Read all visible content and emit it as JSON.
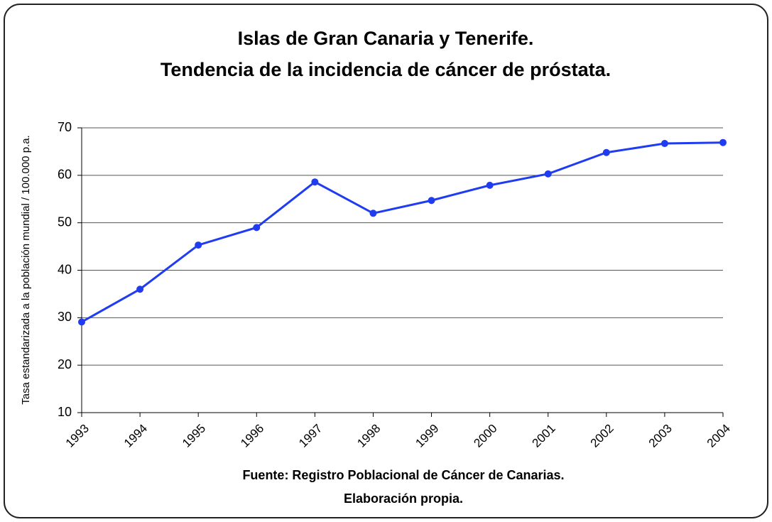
{
  "chart_data": {
    "type": "line",
    "title": [
      "Islas de Gran Canaria y Tenerife.",
      "Tendencia de la incidencia de cáncer de próstata."
    ],
    "y_label": "Tasa estandarizada a la población mundial / 100.000 p.a.",
    "source": [
      "Fuente: Registro Poblacional de Cáncer de Canarias.",
      "Elaboración propia."
    ],
    "categories": [
      "1993",
      "1994",
      "1995",
      "1996",
      "1997",
      "1998",
      "1999",
      "2000",
      "2001",
      "2002",
      "2003",
      "2004"
    ],
    "values": [
      29.1,
      36.0,
      45.3,
      49.0,
      58.6,
      52.0,
      54.7,
      57.9,
      60.3,
      64.8,
      66.7,
      66.9
    ],
    "color": "#1f3cf0",
    "ylim": [
      10,
      70
    ],
    "yticks": [
      10,
      20,
      30,
      40,
      50,
      60,
      70
    ],
    "grid": true
  }
}
